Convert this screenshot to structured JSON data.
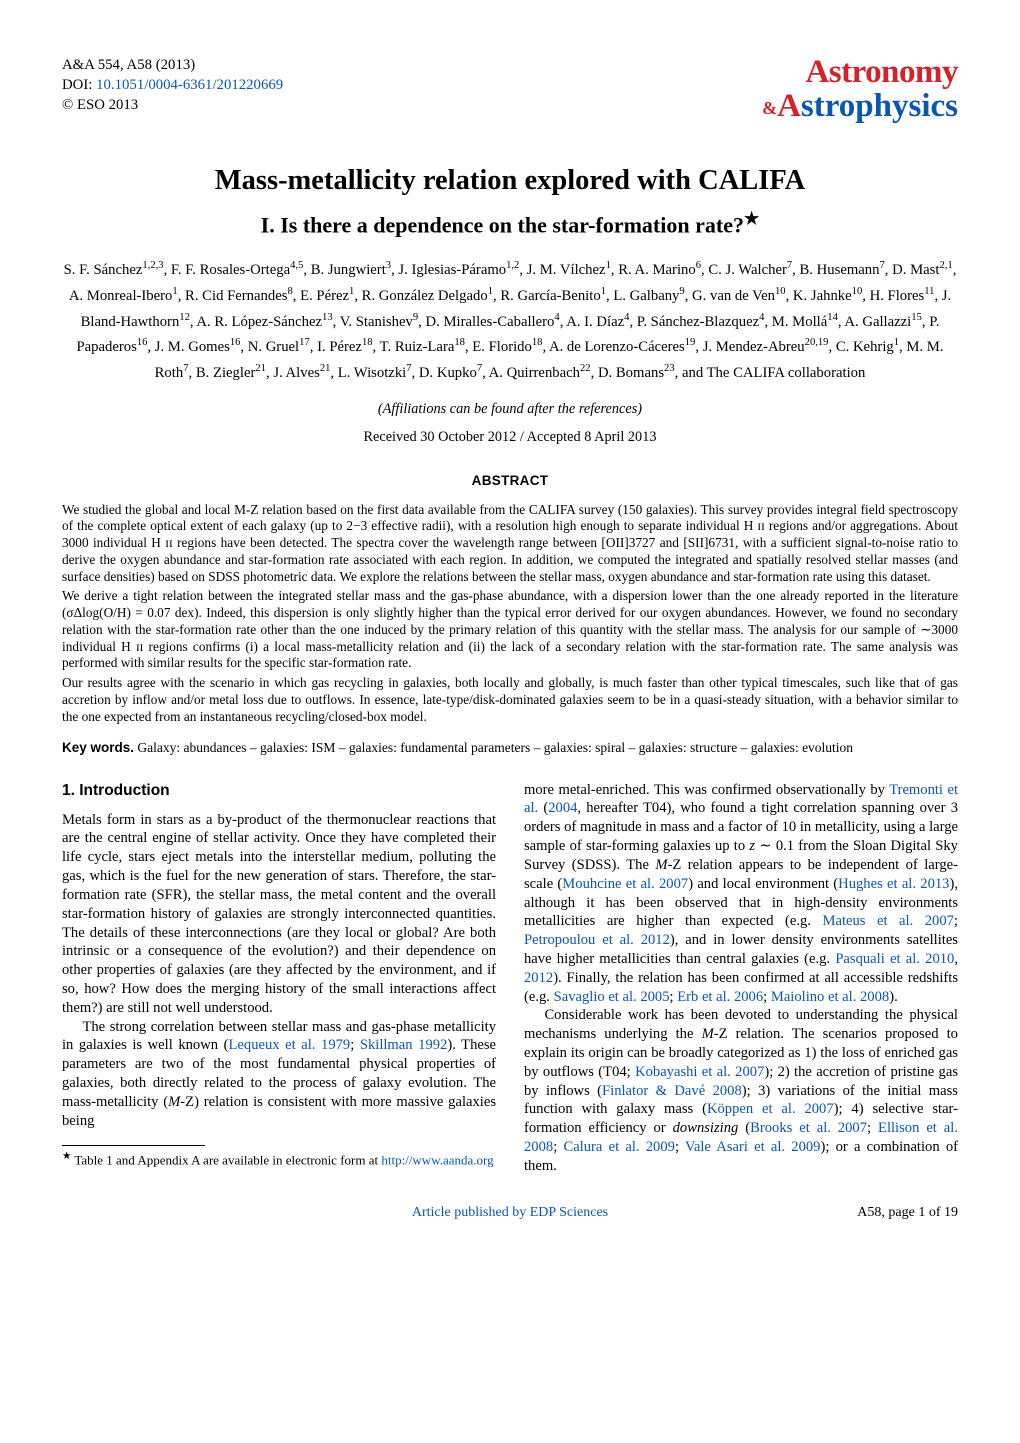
{
  "header": {
    "journal_ref": "A&A 554, A58 (2013)",
    "doi_label": "DOI: ",
    "doi_link_text": "10.1051/0004-6361/201220669",
    "copyright": "© ESO 2013",
    "masthead_top": "Astronomy",
    "masthead_amp": "&",
    "masthead_bottom_A": "A",
    "masthead_bottom_rest": "strophysics"
  },
  "title": "Mass-metallicity relation explored with CALIFA",
  "subtitle_pre": "I. Is there a dependence on the star-formation rate?",
  "subtitle_star": "★",
  "authors_html": "S. F. Sánchez<sup>1,2,3</sup>, F. F. Rosales-Ortega<sup>4,5</sup>, B. Jungwiert<sup>3</sup>, J. Iglesias-Páramo<sup>1,2</sup>, J. M. Vílchez<sup>1</sup>, R. A. Marino<sup>6</sup>, C. J. Walcher<sup>7</sup>, B. Husemann<sup>7</sup>, D. Mast<sup>2,1</sup>, A. Monreal-Ibero<sup>1</sup>, R. Cid Fernandes<sup>8</sup>, E. Pérez<sup>1</sup>, R. González Delgado<sup>1</sup>, R. García-Benito<sup>1</sup>, L. Galbany<sup>9</sup>, G. van de Ven<sup>10</sup>, K. Jahnke<sup>10</sup>, H. Flores<sup>11</sup>, J. Bland-Hawthorn<sup>12</sup>, A. R. López-Sánchez<sup>13</sup>, V. Stanishev<sup>9</sup>, D. Miralles-Caballero<sup>4</sup>, A. I. Díaz<sup>4</sup>, P. Sánchez-Blazquez<sup>4</sup>, M. Mollá<sup>14</sup>, A. Gallazzi<sup>15</sup>, P. Papaderos<sup>16</sup>, J. M. Gomes<sup>16</sup>, N. Gruel<sup>17</sup>, I. Pérez<sup>18</sup>, T. Ruiz-Lara<sup>18</sup>, E. Florido<sup>18</sup>, A. de Lorenzo-Cáceres<sup>19</sup>, J. Mendez-Abreu<sup>20,19</sup>, C. Kehrig<sup>1</sup>, M. M. Roth<sup>7</sup>, B. Ziegler<sup>21</sup>, J. Alves<sup>21</sup>, L. Wisotzki<sup>7</sup>, D. Kupko<sup>7</sup>, A. Quirrenbach<sup>22</sup>, D. Bomans<sup>23</sup>, and The CALIFA collaboration",
  "affil_note": "(Affiliations can be found after the references)",
  "received": "Received 30 October 2012 / Accepted 8 April 2013",
  "abstract_label": "ABSTRACT",
  "abstract": {
    "p1": "We studied the global and local M-Z relation based on the first data available from the CALIFA survey (150 galaxies). This survey provides integral field spectroscopy of the complete optical extent of each galaxy (up to 2−3 effective radii), with a resolution high enough to separate individual H ɪɪ regions and/or aggregations. About 3000 individual H ɪɪ regions have been detected. The spectra cover the wavelength range between [OII]3727 and [SII]6731, with a sufficient signal-to-noise ratio to derive the oxygen abundance and star-formation rate associated with each region. In addition, we computed the integrated and spatially resolved stellar masses (and surface densities) based on SDSS photometric data. We explore the relations between the stellar mass, oxygen abundance and star-formation rate using this dataset.",
    "p2": "We derive a tight relation between the integrated stellar mass and the gas-phase abundance, with a dispersion lower than the one already reported in the literature (σΔlog(O/H) = 0.07 dex). Indeed, this dispersion is only slightly higher than the typical error derived for our oxygen abundances. However, we found no secondary relation with the star-formation rate other than the one induced by the primary relation of this quantity with the stellar mass. The analysis for our sample of ∼3000 individual H ɪɪ regions confirms (i) a local mass-metallicity relation and (ii) the lack of a secondary relation with the star-formation rate. The same analysis was performed with similar results for the specific star-formation rate.",
    "p3": "Our results agree with the scenario in which gas recycling in galaxies, both locally and globally, is much faster than other typical timescales, such like that of gas accretion by inflow and/or metal loss due to outflows. In essence, late-type/disk-dominated galaxies seem to be in a quasi-steady situation, with a behavior similar to the one expected from an instantaneous recycling/closed-box model."
  },
  "keywords_label": "Key words.",
  "keywords_text": " Galaxy: abundances – galaxies: ISM – galaxies: fundamental parameters – galaxies: spiral – galaxies: structure – galaxies: evolution",
  "section1_head": "1. Introduction",
  "footnote_text": "Table 1 and Appendix A are available in electronic form at ",
  "footnote_url": "http://www.aanda.org",
  "pagefoot_pub": "Article published by EDP Sciences",
  "pagefoot_num": "A58, page 1 of 19",
  "colors": {
    "link_blue": "#0b56b3",
    "red": "#d2232a",
    "text": "#000000",
    "bg": "#ffffff"
  }
}
